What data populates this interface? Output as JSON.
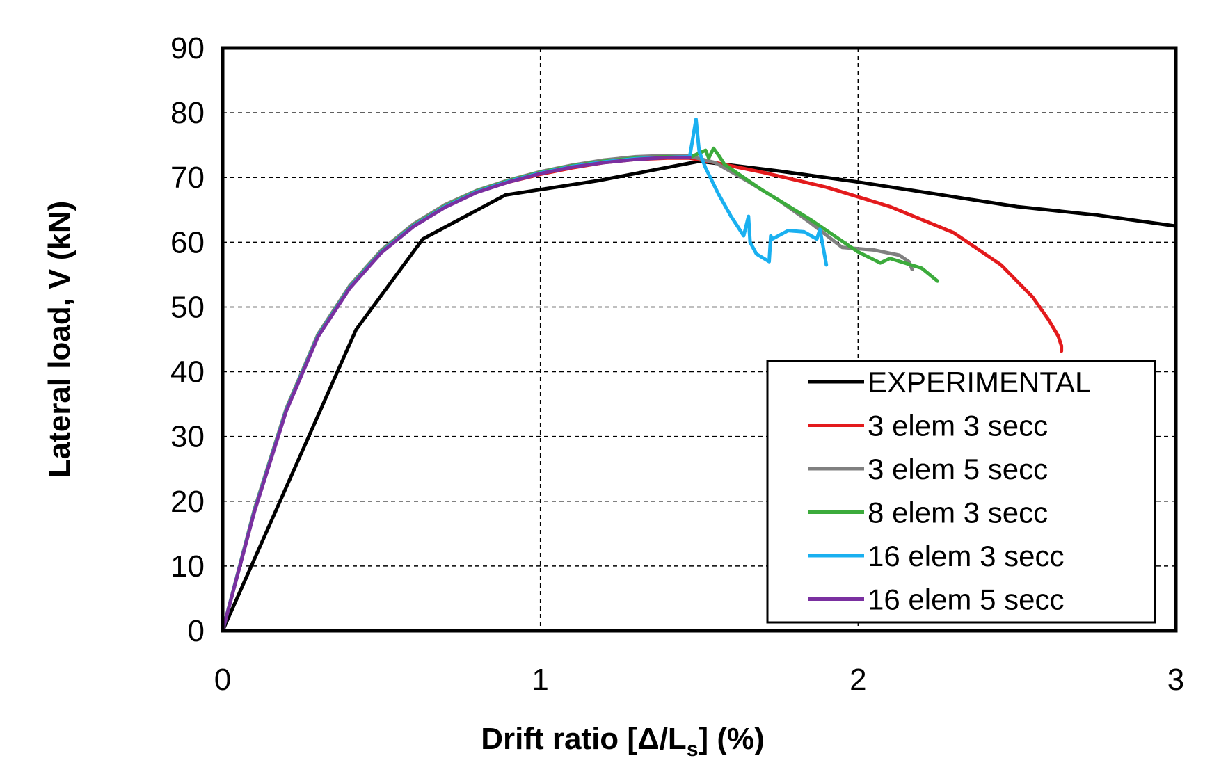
{
  "chart_data": {
    "type": "line",
    "title": "",
    "xlabel": {
      "prefix": "Drift ratio [",
      "delta": "Δ",
      "slash": "/L",
      "sub": "s",
      "suffix": "] (%)"
    },
    "ylabel": "Lateral load, V (kN)",
    "xlim": [
      0,
      3
    ],
    "ylim": [
      0,
      90
    ],
    "x_ticks": [
      0,
      1,
      2,
      3
    ],
    "y_ticks": [
      0,
      10,
      20,
      30,
      40,
      50,
      60,
      70,
      80,
      90
    ],
    "grid": true,
    "legend_position": "bottom-right",
    "series": [
      {
        "name": "EXPERIMENTAL",
        "color": "#000000",
        "x": [
          0,
          0.42,
          0.63,
          0.89,
          1.18,
          1.5,
          1.75,
          2.0,
          2.25,
          2.5,
          2.75,
          3.0
        ],
        "y": [
          0,
          46.5,
          60.5,
          67.3,
          69.5,
          72.5,
          71.0,
          69.3,
          67.4,
          65.5,
          64.2,
          62.5
        ]
      },
      {
        "name": "3 elem 3 secc",
        "color": "#e31a1c",
        "x": [
          0,
          0.1,
          0.2,
          0.3,
          0.4,
          0.5,
          0.6,
          0.7,
          0.8,
          0.9,
          1.0,
          1.1,
          1.2,
          1.3,
          1.4,
          1.47,
          1.55,
          1.7,
          1.9,
          2.1,
          2.3,
          2.45,
          2.55,
          2.6,
          2.63,
          2.64,
          2.64
        ],
        "y": [
          0,
          18.5,
          34.0,
          45.5,
          53.0,
          58.5,
          62.5,
          65.5,
          67.8,
          69.3,
          70.5,
          71.5,
          72.3,
          72.8,
          73.0,
          73.0,
          72.3,
          70.8,
          68.5,
          65.5,
          61.5,
          56.5,
          51.5,
          48.0,
          45.5,
          44.0,
          43.2
        ]
      },
      {
        "name": "3 elem 5 secc",
        "color": "#808080",
        "x": [
          0,
          0.1,
          0.2,
          0.3,
          0.4,
          0.5,
          0.6,
          0.7,
          0.8,
          0.9,
          1.0,
          1.1,
          1.2,
          1.3,
          1.4,
          1.47,
          1.55,
          1.65,
          1.75,
          1.85,
          1.95,
          2.05,
          2.13,
          2.16,
          2.17
        ],
        "y": [
          0,
          18.8,
          34.3,
          45.8,
          53.3,
          58.8,
          62.8,
          65.8,
          68.0,
          69.6,
          70.9,
          71.9,
          72.7,
          73.2,
          73.4,
          73.3,
          72.3,
          69.5,
          66.5,
          63.0,
          59.2,
          58.8,
          58.0,
          57.0,
          55.8
        ]
      },
      {
        "name": "8 elem 3 secc",
        "color": "#3cab3c",
        "x": [
          0,
          0.1,
          0.2,
          0.3,
          0.4,
          0.5,
          0.6,
          0.7,
          0.8,
          0.9,
          1.0,
          1.1,
          1.2,
          1.3,
          1.4,
          1.47,
          1.52,
          1.53,
          1.545,
          1.56,
          1.58,
          1.7,
          1.85,
          2.0,
          2.07,
          2.1,
          2.2,
          2.25
        ],
        "y": [
          0,
          18.6,
          34.1,
          45.6,
          53.1,
          58.6,
          62.6,
          65.6,
          67.9,
          69.5,
          70.8,
          71.8,
          72.5,
          73.0,
          73.2,
          73.1,
          74.2,
          73.0,
          74.5,
          73.5,
          72.0,
          68.0,
          63.5,
          58.5,
          56.8,
          57.5,
          56.0,
          54.0
        ]
      },
      {
        "name": "16 elem 3 secc",
        "color": "#1ab0f0",
        "x": [
          0,
          0.1,
          0.2,
          0.3,
          0.4,
          0.5,
          0.6,
          0.7,
          0.8,
          0.9,
          1.0,
          1.1,
          1.2,
          1.3,
          1.4,
          1.47,
          1.49,
          1.5,
          1.52,
          1.56,
          1.6,
          1.64,
          1.655,
          1.66,
          1.68,
          1.72,
          1.725,
          1.73,
          1.78,
          1.83,
          1.87,
          1.88,
          1.9
        ],
        "y": [
          0,
          18.5,
          34.0,
          45.5,
          53.0,
          58.5,
          62.5,
          65.5,
          67.8,
          69.4,
          70.7,
          71.7,
          72.4,
          72.9,
          73.1,
          73.2,
          79.0,
          74.0,
          71.5,
          67.5,
          64.0,
          61.0,
          64.0,
          60.0,
          58.2,
          57.0,
          61.0,
          60.5,
          61.8,
          61.6,
          60.5,
          62.0,
          56.5
        ]
      },
      {
        "name": "16 elem 5 secc",
        "color": "#7a30a0",
        "x": [
          0,
          0.1,
          0.2,
          0.3,
          0.4,
          0.5,
          0.6,
          0.7,
          0.8,
          0.9,
          1.0,
          1.1,
          1.2,
          1.3,
          1.4,
          1.47
        ],
        "y": [
          0,
          18.4,
          33.9,
          45.4,
          52.9,
          58.4,
          62.4,
          65.4,
          67.7,
          69.3,
          70.6,
          71.6,
          72.3,
          72.8,
          73.1,
          73.1
        ]
      }
    ]
  }
}
